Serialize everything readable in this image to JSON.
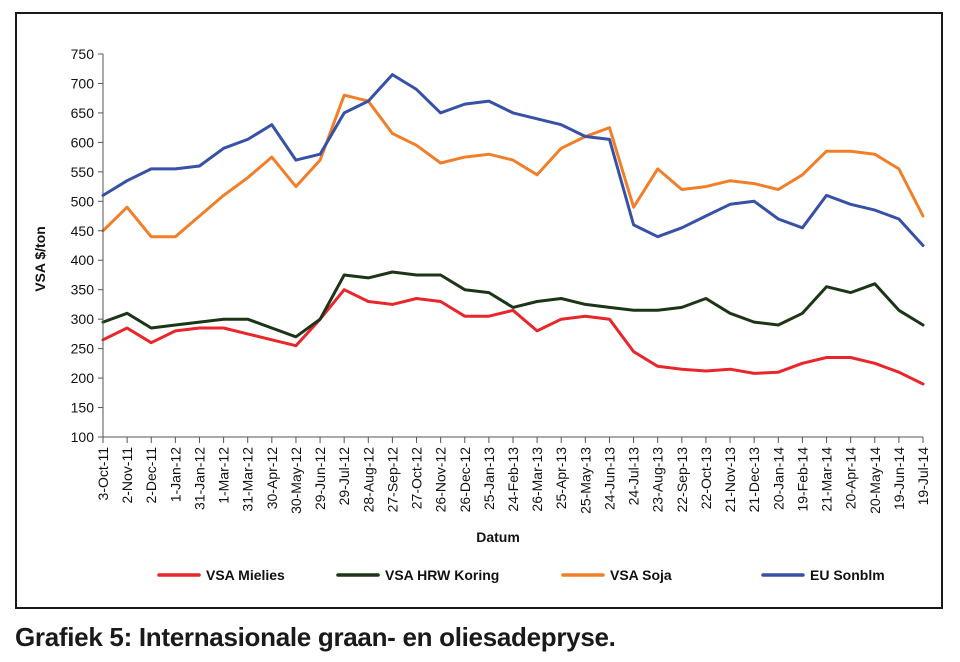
{
  "caption": "Grafiek 5: Internasionale graan- en oliesadepryse.",
  "chart_data": {
    "type": "line",
    "title": "",
    "xlabel": "Datum",
    "ylabel": "VSA $/ton",
    "ylim": [
      100,
      750
    ],
    "yticks": [
      100,
      150,
      200,
      250,
      300,
      350,
      400,
      450,
      500,
      550,
      600,
      650,
      700,
      750
    ],
    "grid": false,
    "legend": "bottom",
    "x": [
      "3-Oct-11",
      "2-Nov-11",
      "2-Dec-11",
      "1-Jan-12",
      "31-Jan-12",
      "1-Mar-12",
      "31-Mar-12",
      "30-Apr-12",
      "30-May-12",
      "29-Jun-12",
      "29-Jul-12",
      "28-Aug-12",
      "27-Sep-12",
      "27-Oct-12",
      "26-Nov-12",
      "26-Dec-12",
      "25-Jan-13",
      "24-Feb-13",
      "26-Mar-13",
      "25-Apr-13",
      "25-May-13",
      "24-Jun-13",
      "24-Jul-13",
      "23-Aug-13",
      "22-Sep-13",
      "22-Oct-13",
      "21-Nov-13",
      "21-Dec-13",
      "20-Jan-14",
      "19-Feb-14",
      "21-Mar-14",
      "20-Apr-14",
      "20-May-14",
      "19-Jun-14",
      "19-Jul-14"
    ],
    "series": [
      {
        "name": "VSA Mielies",
        "color": "#e8262c",
        "values": [
          265,
          285,
          260,
          280,
          285,
          285,
          275,
          265,
          255,
          300,
          350,
          330,
          325,
          335,
          330,
          305,
          305,
          315,
          280,
          300,
          305,
          300,
          245,
          220,
          215,
          212,
          215,
          208,
          210,
          225,
          235,
          235,
          225,
          210,
          190
        ]
      },
      {
        "name": "VSA HRW Koring",
        "color": "#1d3517",
        "values": [
          295,
          310,
          285,
          290,
          295,
          300,
          300,
          285,
          270,
          300,
          375,
          370,
          380,
          375,
          375,
          350,
          345,
          320,
          330,
          335,
          325,
          320,
          315,
          315,
          320,
          335,
          310,
          295,
          290,
          310,
          355,
          345,
          360,
          315,
          290
        ]
      },
      {
        "name": "VSA Soja",
        "color": "#f17f2a",
        "values": [
          450,
          490,
          440,
          440,
          475,
          510,
          540,
          575,
          525,
          570,
          680,
          670,
          615,
          595,
          565,
          575,
          580,
          570,
          545,
          590,
          610,
          625,
          490,
          555,
          520,
          525,
          535,
          530,
          520,
          545,
          585,
          585,
          580,
          555,
          475
        ]
      },
      {
        "name": "EU Sonblm",
        "color": "#3651a6",
        "values": [
          510,
          535,
          555,
          555,
          560,
          590,
          605,
          630,
          570,
          580,
          650,
          670,
          715,
          690,
          650,
          665,
          670,
          650,
          640,
          630,
          610,
          605,
          460,
          440,
          455,
          475,
          495,
          500,
          470,
          455,
          510,
          495,
          485,
          470,
          425
        ]
      }
    ]
  }
}
